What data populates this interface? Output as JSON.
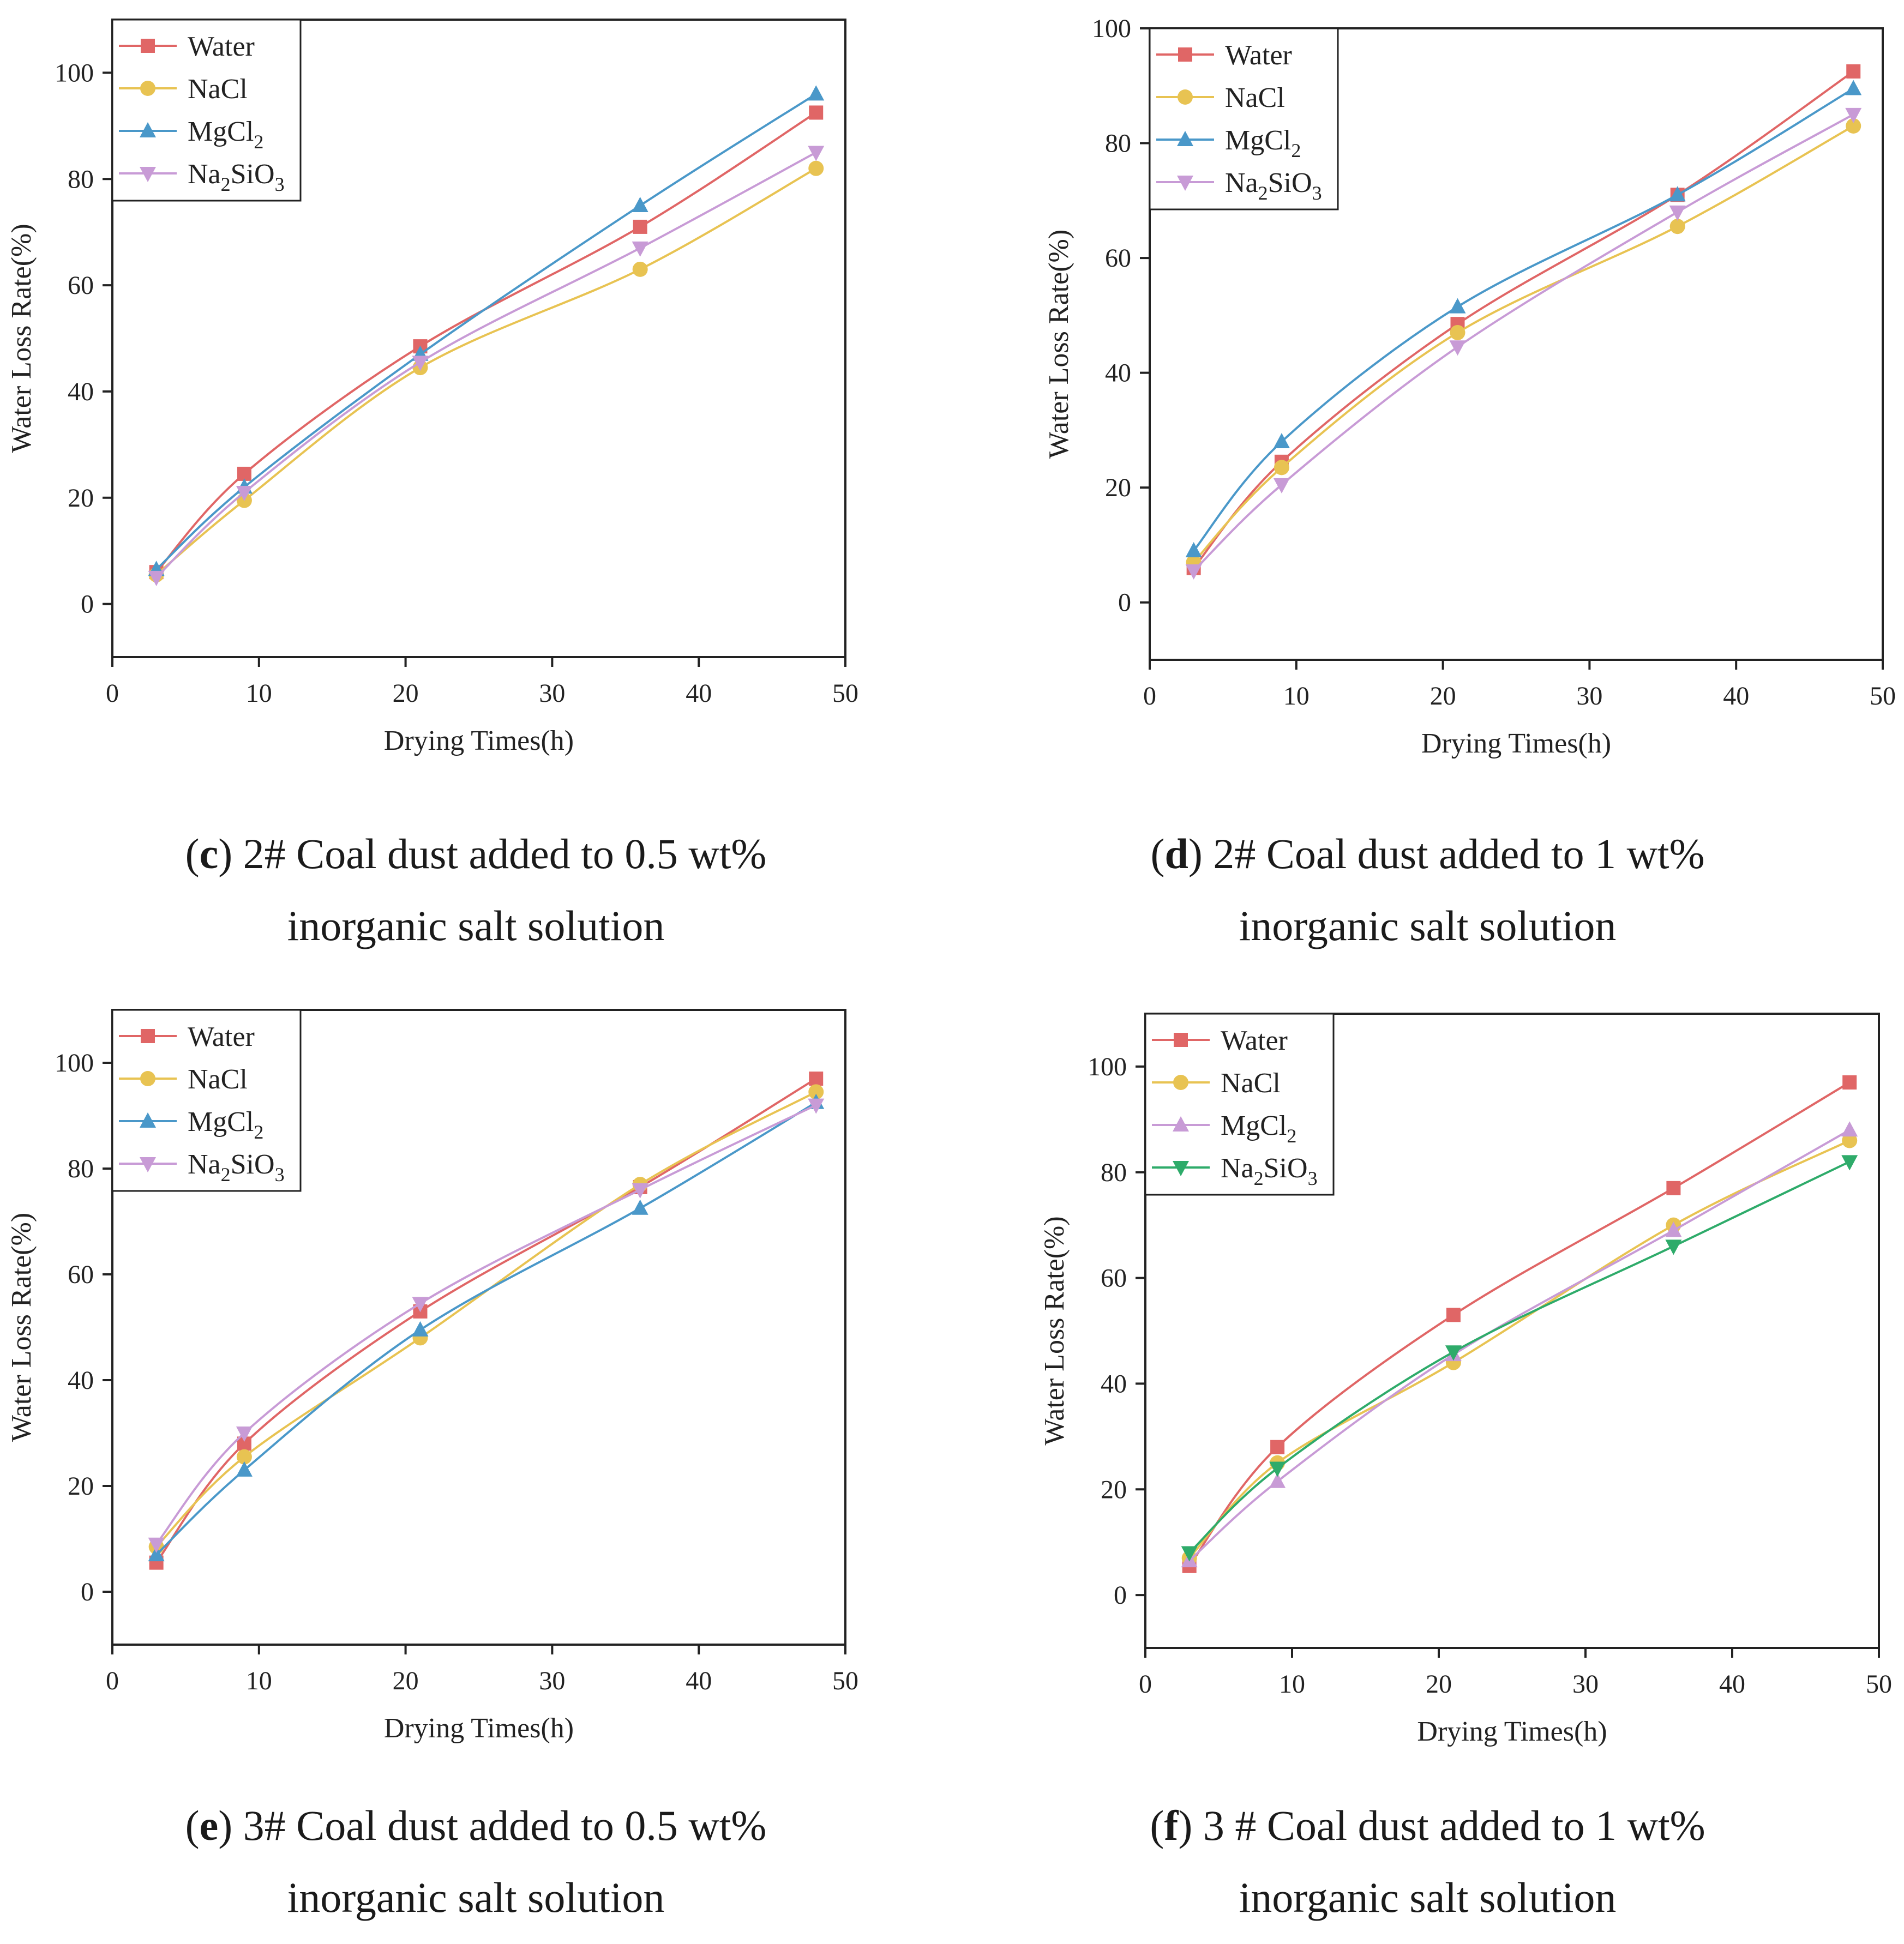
{
  "chart_data": [
    {
      "type": "line",
      "id": "c",
      "caption_letter": "c",
      "caption_line1": " 2# Coal dust added to 0.5 wt%",
      "caption_line2": "inorganic salt solution",
      "xlabel": "Drying Times(h)",
      "ylabel": "Water Loss Rate(%)",
      "xlim": [
        0,
        50
      ],
      "ylim": [
        -10,
        110
      ],
      "xticks": [
        0,
        10,
        20,
        30,
        40,
        50
      ],
      "yticks": [
        0,
        20,
        40,
        60,
        80,
        100
      ],
      "x": [
        3,
        9,
        21,
        36,
        48
      ],
      "series": [
        {
          "name": "Water",
          "legend_sub": "",
          "marker": "square",
          "color": "#e06666",
          "values": [
            6,
            24.5,
            48.5,
            71,
            92.5
          ]
        },
        {
          "name": "NaCl",
          "legend_sub": "",
          "marker": "circle",
          "color": "#e8c352",
          "values": [
            5.5,
            19.5,
            44.5,
            63,
            82
          ]
        },
        {
          "name": "MgCl",
          "legend_sub": "2",
          "marker": "triangle-up",
          "color": "#4a98c9",
          "values": [
            6.5,
            22,
            47,
            75,
            96
          ]
        },
        {
          "name": "Na",
          "legend_sub": "2",
          "legend_tail": "SiO",
          "legend_sub2": "3",
          "marker": "triangle-down",
          "color": "#c89bd6",
          "values": [
            5,
            21,
            45.5,
            67,
            85
          ]
        }
      ]
    },
    {
      "type": "line",
      "id": "d",
      "caption_letter": "d",
      "caption_line1": " 2# Coal dust added to 1 wt%",
      "caption_line2": "inorganic salt solution",
      "xlabel": "Drying Times(h)",
      "ylabel": "Water Loss Rate(%)",
      "xlim": [
        0,
        50
      ],
      "ylim": [
        -10,
        100
      ],
      "xticks": [
        0,
        10,
        20,
        30,
        40,
        50
      ],
      "yticks": [
        0,
        20,
        40,
        60,
        80,
        100
      ],
      "x": [
        3,
        9,
        21,
        36,
        48
      ],
      "series": [
        {
          "name": "Water",
          "legend_sub": "",
          "marker": "square",
          "color": "#e06666",
          "values": [
            6,
            24.5,
            48.5,
            71,
            92.5
          ]
        },
        {
          "name": "NaCl",
          "legend_sub": "",
          "marker": "circle",
          "color": "#e8c352",
          "values": [
            7,
            23.5,
            47,
            65.5,
            83
          ]
        },
        {
          "name": "MgCl",
          "legend_sub": "2",
          "marker": "triangle-up",
          "color": "#4a98c9",
          "values": [
            9,
            28,
            51.5,
            71,
            89.5
          ]
        },
        {
          "name": "Na",
          "legend_sub": "2",
          "legend_tail": "SiO",
          "legend_sub2": "3",
          "marker": "triangle-down",
          "color": "#c89bd6",
          "values": [
            5.5,
            20.5,
            44.5,
            68,
            85
          ]
        }
      ]
    },
    {
      "type": "line",
      "id": "e",
      "caption_letter": "e",
      "caption_line1": " 3# Coal dust added to 0.5 wt%",
      "caption_line2": "inorganic salt solution",
      "xlabel": "Drying Times(h)",
      "ylabel": "Water Loss Rate(%)",
      "xlim": [
        0,
        50
      ],
      "ylim": [
        -10,
        110
      ],
      "xticks": [
        0,
        10,
        20,
        30,
        40,
        50
      ],
      "yticks": [
        0,
        20,
        40,
        60,
        80,
        100
      ],
      "x": [
        3,
        9,
        21,
        36,
        48
      ],
      "series": [
        {
          "name": "Water",
          "legend_sub": "",
          "marker": "square",
          "color": "#e06666",
          "values": [
            5.5,
            28,
            53,
            76.5,
            97
          ]
        },
        {
          "name": "NaCl",
          "legend_sub": "",
          "marker": "circle",
          "color": "#e8c352",
          "values": [
            8.5,
            25.5,
            48,
            77,
            94.5
          ]
        },
        {
          "name": "MgCl",
          "legend_sub": "2",
          "marker": "triangle-up",
          "color": "#4a98c9",
          "values": [
            7,
            23,
            49.5,
            72.5,
            92.5
          ]
        },
        {
          "name": "Na",
          "legend_sub": "2",
          "legend_tail": "SiO",
          "legend_sub2": "3",
          "marker": "triangle-down",
          "color": "#c89bd6",
          "values": [
            9,
            30,
            54.5,
            76,
            92
          ]
        }
      ]
    },
    {
      "type": "line",
      "id": "f",
      "caption_letter": "f",
      "caption_line1": " 3 # Coal dust added to 1 wt%",
      "caption_line2": "inorganic salt solution",
      "xlabel": "Drying Times(h)",
      "ylabel": "Water Loss Rate(%)",
      "xlim": [
        0,
        50
      ],
      "ylim": [
        -10,
        110
      ],
      "xticks": [
        0,
        10,
        20,
        30,
        40,
        50
      ],
      "yticks": [
        0,
        20,
        40,
        60,
        80,
        100
      ],
      "x": [
        3,
        9,
        21,
        36,
        48
      ],
      "series": [
        {
          "name": "Water",
          "legend_sub": "",
          "marker": "square",
          "color": "#e06666",
          "values": [
            5.5,
            28,
            53,
            77,
            97
          ]
        },
        {
          "name": "NaCl",
          "legend_sub": "",
          "marker": "circle",
          "color": "#e8c352",
          "values": [
            7,
            25,
            44,
            70,
            86
          ]
        },
        {
          "name": "MgCl",
          "legend_sub": "2",
          "marker": "triangle-up",
          "color": "#c89bd6",
          "values": [
            6.5,
            21.5,
            45.5,
            69,
            88
          ]
        },
        {
          "name": "Na",
          "legend_sub": "2",
          "legend_tail": "SiO",
          "legend_sub2": "3",
          "marker": "triangle-down",
          "color": "#2eab6a",
          "values": [
            8,
            24,
            46,
            66,
            82
          ]
        }
      ]
    }
  ]
}
